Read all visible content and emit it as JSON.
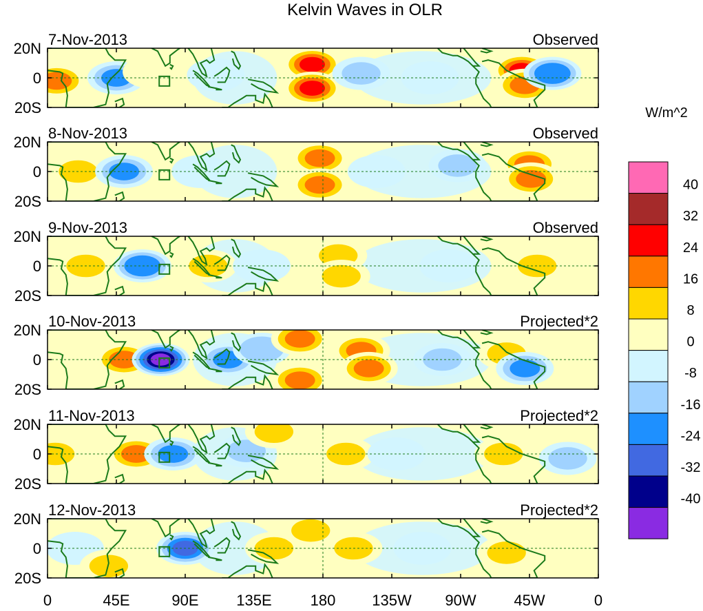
{
  "title": "Kelvin Waves in OLR",
  "units": "W/m^2",
  "lat_labels": [
    "20N",
    "0",
    "20S"
  ],
  "lon_labels": [
    "0",
    "45E",
    "90E",
    "135E",
    "180",
    "135W",
    "90W",
    "45W",
    "0"
  ],
  "panels": [
    {
      "date": "7-Nov-2013",
      "type": "Observed"
    },
    {
      "date": "8-Nov-2013",
      "type": "Observed"
    },
    {
      "date": "9-Nov-2013",
      "type": "Observed"
    },
    {
      "date": "10-Nov-2013",
      "type": "Projected*2"
    },
    {
      "date": "11-Nov-2013",
      "type": "Projected*2"
    },
    {
      "date": "12-Nov-2013",
      "type": "Projected*2"
    }
  ],
  "colorbar": {
    "labels": [
      "40",
      "32",
      "24",
      "16",
      "8",
      "0",
      "-8",
      "-16",
      "-24",
      "-32",
      "-40"
    ],
    "colors": [
      "#ff69b4",
      "#a52a2a",
      "#ff0000",
      "#ff7700",
      "#ffd700",
      "#ffffc0",
      "#d2f5ff",
      "#a0d2ff",
      "#1e90ff",
      "#4169e1",
      "#00008b",
      "#8a2be2"
    ]
  },
  "chart_data": {
    "type": "heatmap",
    "title": "Kelvin Waves in OLR",
    "units": "W/m^2",
    "x_range": [
      0,
      360
    ],
    "y_range": [
      -20,
      20
    ],
    "levels": [
      -40,
      -32,
      -24,
      -16,
      -8,
      0,
      8,
      16,
      24,
      32,
      40
    ],
    "panels": [
      {
        "date": "7-Nov-2013",
        "type": "Observed",
        "anomalies": [
          {
            "lon": 6,
            "lat": -2,
            "value": 18
          },
          {
            "lon": 45,
            "lat": 0,
            "value": -18
          },
          {
            "lon": 68,
            "lat": 4,
            "value": 6
          },
          {
            "lon": 110,
            "lat": 2,
            "value": -8
          },
          {
            "lon": 173,
            "lat": 9,
            "value": 30
          },
          {
            "lon": 173,
            "lat": -7,
            "value": 30
          },
          {
            "lon": 205,
            "lat": 3,
            "value": -14
          },
          {
            "lon": 250,
            "lat": 0,
            "value": -6
          },
          {
            "lon": 310,
            "lat": 5,
            "value": 24
          },
          {
            "lon": 312,
            "lat": -5,
            "value": 20
          },
          {
            "lon": 330,
            "lat": 3,
            "value": -24
          }
        ]
      },
      {
        "date": "8-Nov-2013",
        "type": "Observed",
        "anomalies": [
          {
            "lon": 20,
            "lat": 0,
            "value": 10
          },
          {
            "lon": 50,
            "lat": 0,
            "value": -22
          },
          {
            "lon": 100,
            "lat": 0,
            "value": -6
          },
          {
            "lon": 178,
            "lat": 9,
            "value": 20
          },
          {
            "lon": 178,
            "lat": -9,
            "value": 20
          },
          {
            "lon": 215,
            "lat": 0,
            "value": -8
          },
          {
            "lon": 268,
            "lat": 4,
            "value": -10
          },
          {
            "lon": 315,
            "lat": 5,
            "value": 18
          },
          {
            "lon": 316,
            "lat": -5,
            "value": 16
          }
        ]
      },
      {
        "date": "9-Nov-2013",
        "type": "Observed",
        "anomalies": [
          {
            "lon": 25,
            "lat": 0,
            "value": 8
          },
          {
            "lon": 62,
            "lat": 0,
            "value": -24
          },
          {
            "lon": 105,
            "lat": 0,
            "value": 8
          },
          {
            "lon": 140,
            "lat": 0,
            "value": -6
          },
          {
            "lon": 190,
            "lat": 7,
            "value": 14
          },
          {
            "lon": 192,
            "lat": -7,
            "value": 12
          },
          {
            "lon": 262,
            "lat": 0,
            "value": -8
          },
          {
            "lon": 320,
            "lat": 0,
            "value": 10
          }
        ]
      },
      {
        "date": "10-Nov-2013",
        "type": "Projected*2",
        "anomalies": [
          {
            "lon": 50,
            "lat": 0,
            "value": 22
          },
          {
            "lon": 74,
            "lat": 0,
            "value": -42
          },
          {
            "lon": 118,
            "lat": 0,
            "value": -18
          },
          {
            "lon": 140,
            "lat": 7,
            "value": -16
          },
          {
            "lon": 165,
            "lat": 14,
            "value": 16
          },
          {
            "lon": 165,
            "lat": -14,
            "value": 16
          },
          {
            "lon": 205,
            "lat": 6,
            "value": 16
          },
          {
            "lon": 210,
            "lat": -6,
            "value": 16
          },
          {
            "lon": 258,
            "lat": 0,
            "value": -14
          },
          {
            "lon": 300,
            "lat": 4,
            "value": 10
          },
          {
            "lon": 312,
            "lat": -6,
            "value": -20
          }
        ]
      },
      {
        "date": "11-Nov-2013",
        "type": "Projected*2",
        "anomalies": [
          {
            "lon": 5,
            "lat": 0,
            "value": 10
          },
          {
            "lon": 58,
            "lat": 0,
            "value": 22
          },
          {
            "lon": 82,
            "lat": 0,
            "value": -20
          },
          {
            "lon": 130,
            "lat": 2,
            "value": -12
          },
          {
            "lon": 148,
            "lat": 15,
            "value": 10
          },
          {
            "lon": 195,
            "lat": 0,
            "value": 14
          },
          {
            "lon": 228,
            "lat": 0,
            "value": -8
          },
          {
            "lon": 298,
            "lat": 0,
            "value": 10
          },
          {
            "lon": 340,
            "lat": -3,
            "value": -10
          }
        ]
      },
      {
        "date": "12-Nov-2013",
        "type": "Projected*2",
        "anomalies": [
          {
            "lon": 18,
            "lat": 0,
            "value": -8
          },
          {
            "lon": 40,
            "lat": -12,
            "value": 12
          },
          {
            "lon": 90,
            "lat": 0,
            "value": -26
          },
          {
            "lon": 148,
            "lat": 0,
            "value": 10
          },
          {
            "lon": 172,
            "lat": 12,
            "value": 12
          },
          {
            "lon": 200,
            "lat": 0,
            "value": 12
          },
          {
            "lon": 245,
            "lat": 0,
            "value": -6
          },
          {
            "lon": 300,
            "lat": -3,
            "value": 10
          }
        ]
      }
    ]
  }
}
